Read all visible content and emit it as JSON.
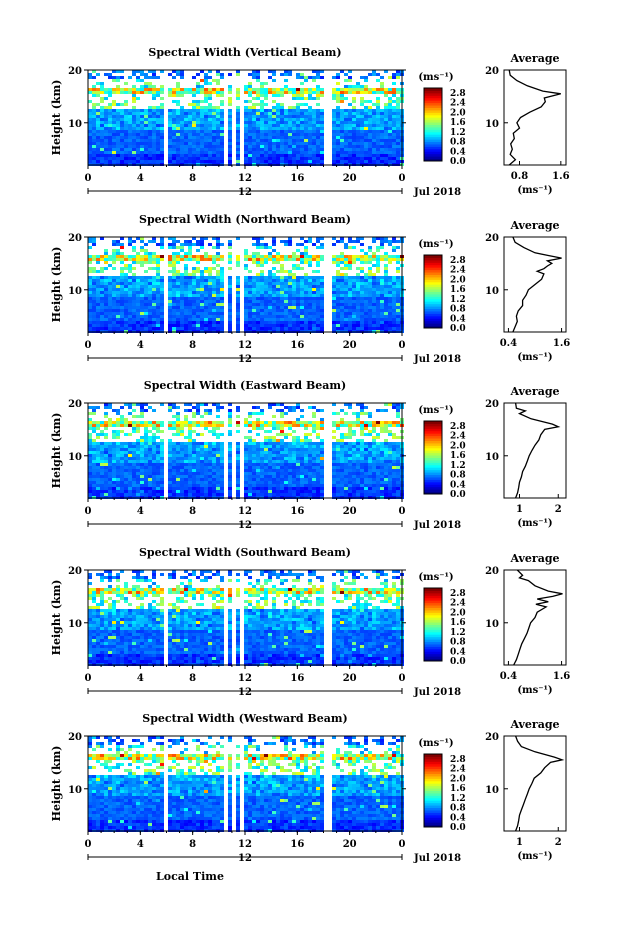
{
  "chart_data": {
    "type": "heatmap",
    "common": {
      "time_ticks": [
        "0",
        "4",
        "8",
        "12",
        "16",
        "20",
        "0"
      ],
      "date_label": "Jul 2018",
      "date_tick_label": "12",
      "ylabel": "Height (km)",
      "height_ticks": [
        "20",
        "10"
      ],
      "colorbar_unit": "(ms⁻¹)",
      "colorbar_ticks": [
        "2.8",
        "2.4",
        "2.0",
        "1.6",
        "1.2",
        "0.8",
        "0.4",
        "0.0"
      ],
      "avg_title": "Average",
      "avg_xlabel": "(ms⁻¹)",
      "xlabel": "Local Time",
      "ylim_km": [
        2,
        20
      ],
      "xlim_hours": [
        0,
        24
      ],
      "colorbar_range": [
        0.0,
        3.0
      ]
    },
    "panels": [
      {
        "title": "Spectral Width (Vertical Beam)",
        "avg_ticks": [
          "0.8",
          "1.6"
        ],
        "avg_range": [
          0.5,
          1.7
        ],
        "avg_profile": [
          [
            2,
            0.6
          ],
          [
            3,
            0.72
          ],
          [
            4,
            0.62
          ],
          [
            5,
            0.66
          ],
          [
            6,
            0.63
          ],
          [
            7,
            0.7
          ],
          [
            8,
            0.68
          ],
          [
            9,
            0.8
          ],
          [
            10,
            0.75
          ],
          [
            11,
            0.82
          ],
          [
            12,
            1.0
          ],
          [
            13,
            1.22
          ],
          [
            14,
            1.3
          ],
          [
            14.7,
            1.28
          ],
          [
            15.5,
            1.6
          ],
          [
            16,
            1.25
          ],
          [
            17,
            0.95
          ],
          [
            18,
            0.75
          ],
          [
            19,
            0.62
          ],
          [
            20,
            0.6
          ]
        ]
      },
      {
        "title": "Spectral Width (Northward Beam)",
        "avg_ticks": [
          "0.4",
          "1.6"
        ],
        "avg_range": [
          0.3,
          1.7
        ],
        "avg_profile": [
          [
            2,
            0.5
          ],
          [
            3,
            0.55
          ],
          [
            4,
            0.6
          ],
          [
            5,
            0.58
          ],
          [
            6,
            0.62
          ],
          [
            7,
            0.72
          ],
          [
            8,
            0.72
          ],
          [
            9,
            0.8
          ],
          [
            10,
            0.85
          ],
          [
            11,
            1.0
          ],
          [
            12,
            1.15
          ],
          [
            13,
            1.2
          ],
          [
            13.5,
            1.05
          ],
          [
            14,
            1.2
          ],
          [
            14.5,
            1.28
          ],
          [
            15,
            1.38
          ],
          [
            15.5,
            1.28
          ],
          [
            16,
            1.6
          ],
          [
            16.5,
            1.3
          ],
          [
            17,
            1.0
          ],
          [
            18,
            0.75
          ],
          [
            19,
            0.55
          ],
          [
            20,
            0.5
          ]
        ]
      },
      {
        "title": "Spectral Width (Eastward Beam)",
        "avg_ticks": [
          "1",
          "2"
        ],
        "avg_range": [
          0.6,
          2.2
        ],
        "avg_profile": [
          [
            2,
            0.9
          ],
          [
            3,
            0.95
          ],
          [
            4,
            0.98
          ],
          [
            5,
            1.0
          ],
          [
            6,
            1.05
          ],
          [
            7,
            1.08
          ],
          [
            8,
            1.15
          ],
          [
            9,
            1.2
          ],
          [
            10,
            1.25
          ],
          [
            11,
            1.32
          ],
          [
            12,
            1.4
          ],
          [
            13,
            1.5
          ],
          [
            14,
            1.55
          ],
          [
            15,
            1.65
          ],
          [
            15.5,
            2.0
          ],
          [
            16,
            1.85
          ],
          [
            17,
            1.3
          ],
          [
            18,
            1.0
          ],
          [
            18.5,
            1.15
          ],
          [
            19,
            0.92
          ],
          [
            20,
            0.9
          ]
        ]
      },
      {
        "title": "Spectral Width (Southward Beam)",
        "avg_ticks": [
          "0.4",
          "1.6"
        ],
        "avg_range": [
          0.3,
          1.7
        ],
        "avg_profile": [
          [
            2,
            0.52
          ],
          [
            3,
            0.58
          ],
          [
            4,
            0.62
          ],
          [
            5,
            0.66
          ],
          [
            6,
            0.7
          ],
          [
            7,
            0.76
          ],
          [
            8,
            0.82
          ],
          [
            9,
            0.86
          ],
          [
            10,
            0.9
          ],
          [
            11,
            1.0
          ],
          [
            12,
            1.05
          ],
          [
            13,
            1.25
          ],
          [
            13.5,
            1.02
          ],
          [
            14,
            1.3
          ],
          [
            14.5,
            1.05
          ],
          [
            15,
            1.4
          ],
          [
            15.5,
            1.62
          ],
          [
            16,
            1.3
          ],
          [
            17,
            1.0
          ],
          [
            18,
            0.85
          ],
          [
            18.5,
            0.65
          ],
          [
            19,
            0.72
          ],
          [
            20,
            0.6
          ]
        ]
      },
      {
        "title": "Spectral Width (Westward Beam)",
        "avg_ticks": [
          "1",
          "2"
        ],
        "avg_range": [
          0.6,
          2.2
        ],
        "avg_profile": [
          [
            2,
            0.9
          ],
          [
            3,
            0.95
          ],
          [
            4,
            0.98
          ],
          [
            5,
            1.0
          ],
          [
            6,
            1.05
          ],
          [
            7,
            1.1
          ],
          [
            8,
            1.15
          ],
          [
            9,
            1.2
          ],
          [
            10,
            1.25
          ],
          [
            11,
            1.32
          ],
          [
            12,
            1.38
          ],
          [
            13,
            1.55
          ],
          [
            14,
            1.65
          ],
          [
            15,
            1.8
          ],
          [
            15.5,
            2.1
          ],
          [
            16,
            1.9
          ],
          [
            17,
            1.4
          ],
          [
            18,
            1.05
          ],
          [
            19,
            0.95
          ],
          [
            20,
            0.9
          ]
        ]
      }
    ]
  }
}
